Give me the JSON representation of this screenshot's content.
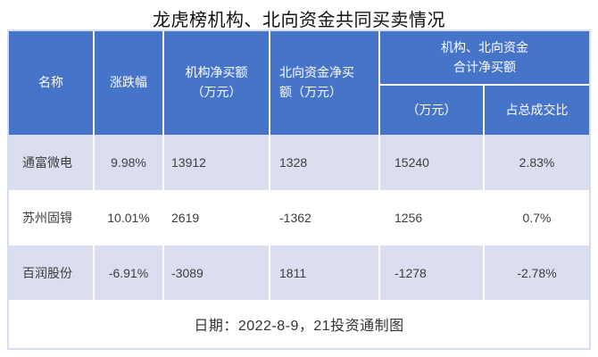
{
  "title": "龙虎榜机构、北向资金共同买卖情况",
  "colors": {
    "header_blue": "#4674c9",
    "stripe_blue": "#dadeef",
    "outer_border": "#d8dcef",
    "header_text": "#ffffff",
    "body_text": "#3d3d3d"
  },
  "chart_data": {
    "type": "table",
    "title": "龙虎榜机构、北向资金共同买卖情况",
    "columns": [
      "名称",
      "涨跌幅",
      "机构净买额（万元）",
      "北向资金净买额（万元）",
      "机构、北向资金合计净买额（万元）",
      "机构、北向资金合计净买额占总成交比"
    ],
    "rows": [
      [
        "通富微电",
        "9.98%",
        13912,
        1328,
        15240,
        "2.83%"
      ],
      [
        "苏州固锝",
        "10.01%",
        2619,
        -1362,
        1256,
        "0.7%"
      ],
      [
        "百润股份",
        "-6.91%",
        -3089,
        1811,
        -1278,
        "-2.78%"
      ]
    ]
  },
  "table": {
    "headers": {
      "name": "名称",
      "change": "涨跌幅",
      "inst_net_buy": "机构净买额（万元）",
      "north_net_buy": "北向资金净买额（万元）",
      "combined_group": "机构、北向资金合计净买额",
      "combined_amount": "（万元）",
      "combined_ratio": "占总成交比"
    },
    "rows": [
      {
        "name": "通富微电",
        "change": "9.98%",
        "inst": "13912",
        "north": "1328",
        "total": "15240",
        "ratio": "2.83%"
      },
      {
        "name": "苏州固锝",
        "change": "10.01%",
        "inst": "2619",
        "north": "-1362",
        "total": "1256",
        "ratio": "0.7%"
      },
      {
        "name": "百润股份",
        "change": "-6.91%",
        "inst": "-3089",
        "north": "1811",
        "total": "-1278",
        "ratio": "-2.78%"
      }
    ],
    "footer": "日期：2022-8-9，21投资通制图"
  }
}
